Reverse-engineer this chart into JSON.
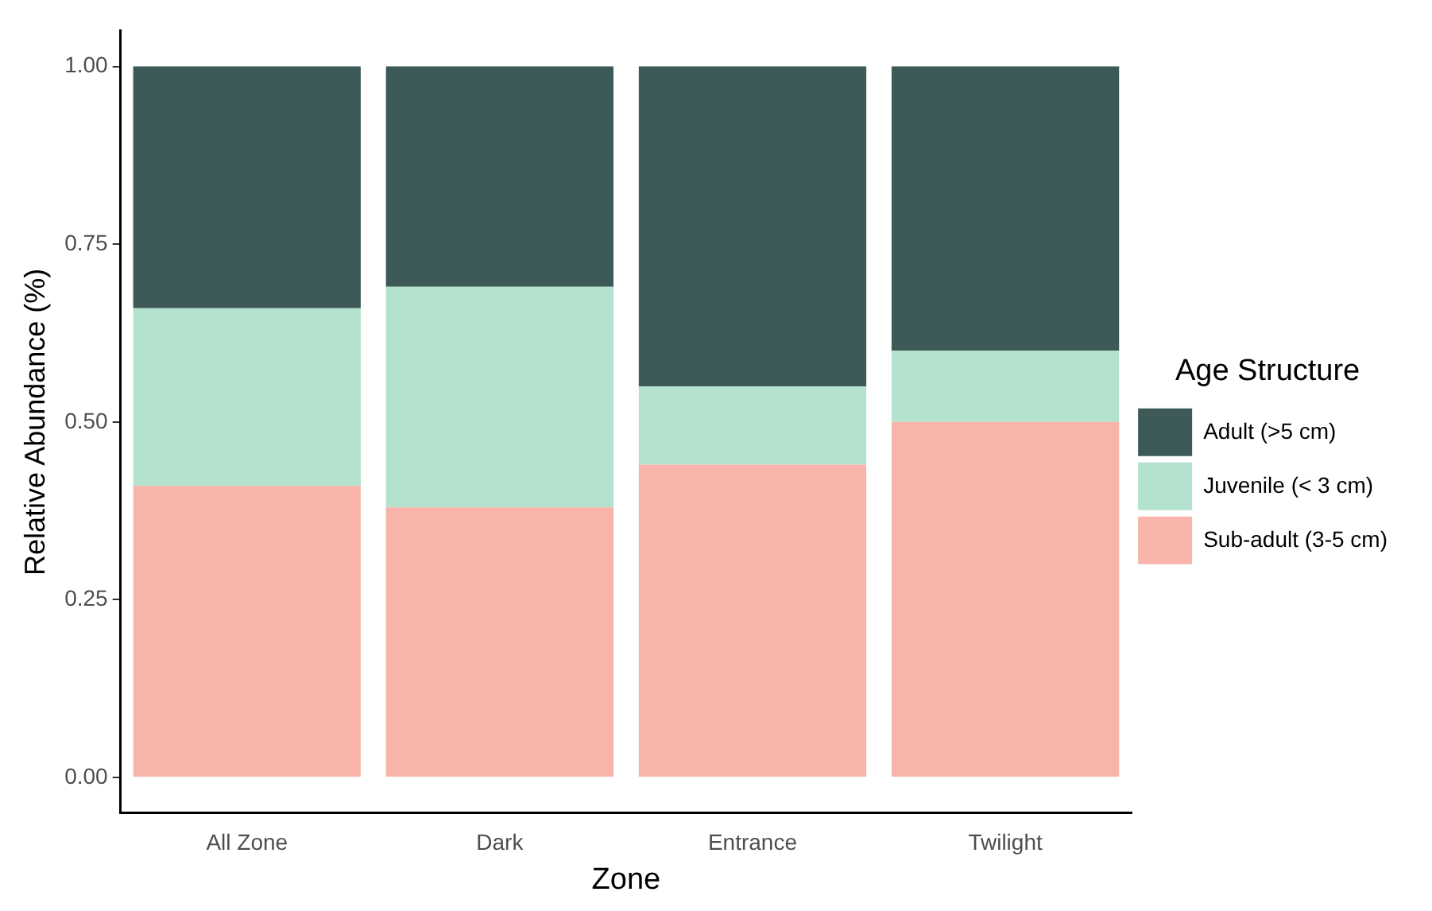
{
  "chart_data": {
    "type": "bar",
    "stacked": true,
    "xlabel": "Zone",
    "ylabel": "Relative Abundance (%)",
    "legend_title": "Age Structure",
    "legend": "right",
    "categories": [
      "All Zone",
      "Dark",
      "Entrance",
      "Twilight"
    ],
    "series": [
      {
        "name": "Sub-adult (3-5 cm)",
        "color": "#f8b4aa",
        "values": [
          0.41,
          0.38,
          0.44,
          0.5
        ]
      },
      {
        "name": "Juvenile (< 3 cm)",
        "color": "#b3e3cf",
        "values": [
          0.25,
          0.31,
          0.11,
          0.1
        ]
      },
      {
        "name": "Adult (>5 cm)",
        "color": "#3d5a58",
        "values": [
          0.34,
          0.31,
          0.45,
          0.4
        ]
      }
    ],
    "ylim": [
      -0.05,
      1.05
    ],
    "yticks": [
      {
        "value": 0,
        "label": "0.00"
      },
      {
        "value": 0.25,
        "label": "0.25"
      },
      {
        "value": 0.5,
        "label": "0.50"
      },
      {
        "value": 0.75,
        "label": "0.75"
      },
      {
        "value": 1,
        "label": "1.00"
      }
    ],
    "grid": false
  }
}
